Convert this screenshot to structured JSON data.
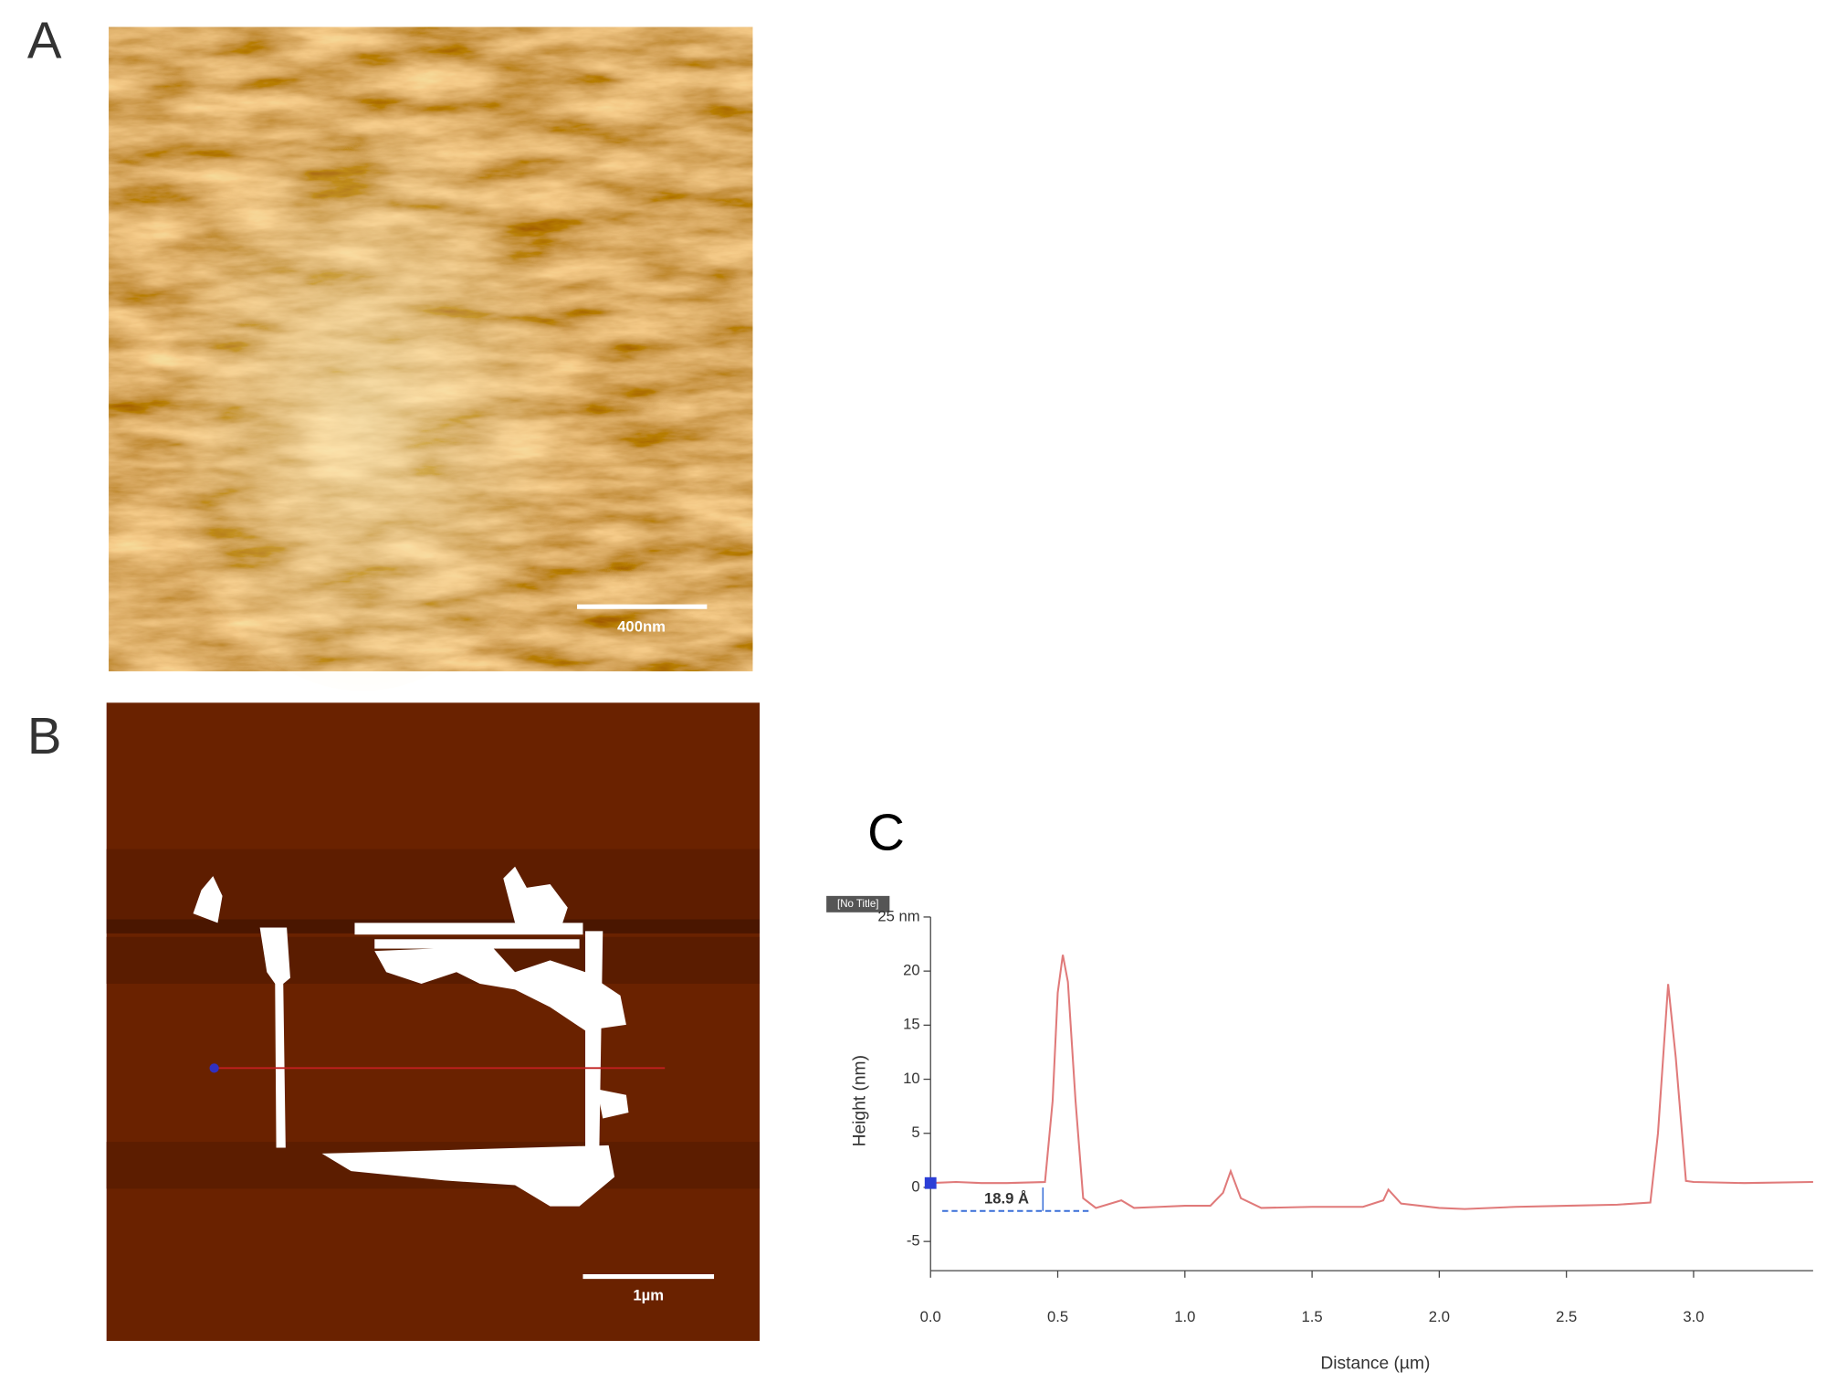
{
  "panels": [
    {
      "label": "A",
      "scale_bar": "400nm"
    },
    {
      "label": "B",
      "scale_bar": "1µm"
    }
  ],
  "chart_data": {
    "type": "line",
    "panel_label": "C",
    "tag": "[No Title]",
    "x_label": "Distance (µm)",
    "y_label": "Height (nm)",
    "annotation": "18.9 Å",
    "color": "#e07a7a",
    "x": [
      0,
      0.1,
      0.2,
      0.3,
      0.45,
      0.48,
      0.5,
      0.52,
      0.54,
      0.57,
      0.6,
      0.65,
      0.75,
      0.8,
      0.9,
      1.0,
      1.1,
      1.15,
      1.18,
      1.22,
      1.3,
      1.5,
      1.7,
      1.78,
      1.8,
      1.85,
      2.0,
      2.1,
      2.3,
      2.5,
      2.7,
      2.83,
      2.86,
      2.9,
      2.93,
      2.97,
      3.0,
      3.2,
      3.47
    ],
    "values": [
      0.4,
      0.5,
      0.4,
      0.4,
      0.5,
      8,
      18,
      21.5,
      19,
      8,
      -1,
      -1.9,
      -1.2,
      -1.9,
      -1.8,
      -1.7,
      -1.7,
      -0.5,
      1.5,
      -1,
      -1.9,
      -1.8,
      -1.8,
      -1.2,
      -0.2,
      -1.5,
      -1.9,
      -2.0,
      -1.8,
      -1.7,
      -1.6,
      -1.4,
      5,
      18.8,
      12,
      0.6,
      0.5,
      0.4,
      0.5
    ],
    "xlim": [
      0,
      3.47
    ],
    "ylim": [
      -7.7,
      25
    ],
    "xticks": [
      {
        "value": 0,
        "label": "0.0"
      },
      0.5,
      {
        "value": 1,
        "label": "1.0"
      },
      1.5,
      {
        "value": 2,
        "label": "2.0"
      },
      2.5,
      {
        "value": 3,
        "label": "3.0"
      }
    ],
    "yticks": [
      -5,
      0,
      5,
      10,
      15,
      20,
      {
        "value": 25,
        "label": "25 nm"
      }
    ]
  }
}
